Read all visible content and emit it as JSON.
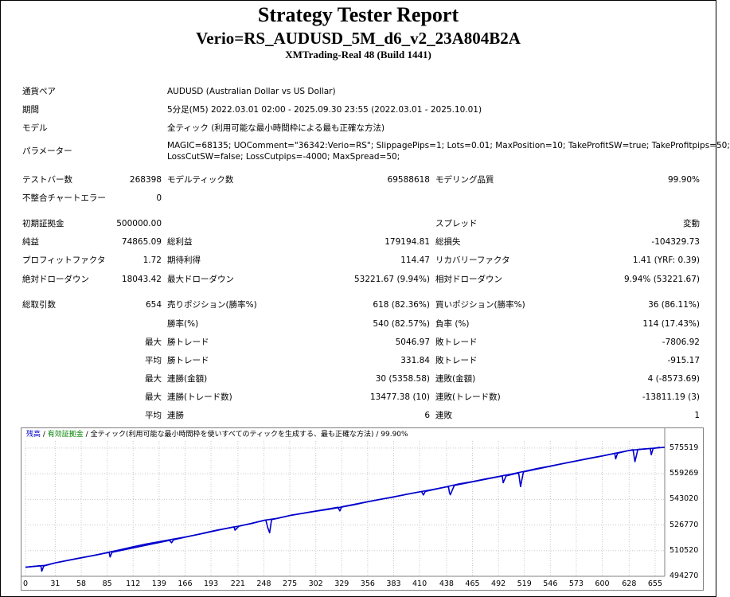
{
  "header": {
    "title": "Strategy Tester Report",
    "subtitle": "Verio=RS_AUDUSD_5M_d6_v2_23A804B2A",
    "server": "XMTrading-Real 48 (Build 1441)"
  },
  "info": {
    "symbol_label": "通貨ペア",
    "symbol_value": "AUDUSD (Australian Dollar vs US Dollar)",
    "period_label": "期間",
    "period_value": "5分足(M5) 2022.03.01 02:00 - 2025.09.30 23:55 (2022.03.01 - 2025.10.01)",
    "model_label": "モデル",
    "model_value": "全ティック (利用可能な最小時間枠による最も正確な方法)",
    "params_label": "パラメーター",
    "params_line1": "MAGIC=68135; UOComment=\"36342:Verio=RS\"; SlippagePips=1; Lots=0.01; MaxPosition=10; TakeProfitSW=true; TakeProfitpips=50;",
    "params_line2": "LossCutSW=false; LossCutpips=-4000; MaxSpread=50;"
  },
  "stats": {
    "bars_label": "テストバー数",
    "bars_value": "268398",
    "ticks_label": "モデルティック数",
    "ticks_value": "69588618",
    "quality_label": "モデリング品質",
    "quality_value": "99.90%",
    "mismatch_label": "不整合チャートエラー",
    "mismatch_value": "0",
    "deposit_label": "初期証拠金",
    "deposit_value": "500000.00",
    "spread_label": "スプレッド",
    "spread_value": "変動",
    "netprofit_label": "純益",
    "netprofit_value": "74865.09",
    "grossprofit_label": "総利益",
    "grossprofit_value": "179194.81",
    "grossloss_label": "総損失",
    "grossloss_value": "-104329.73",
    "pf_label": "プロフィットファクタ",
    "pf_value": "1.72",
    "payoff_label": "期待利得",
    "payoff_value": "114.47",
    "recovery_label": "リカバリーファクタ",
    "recovery_value": "1.41 (YRF: 0.39)",
    "absdd_label": "絶対ドローダウン",
    "absdd_value": "18043.42",
    "maxdd_label": "最大ドローダウン",
    "maxdd_value": "53221.67 (9.94%)",
    "reldd_label": "相対ドローダウン",
    "reldd_value": "9.94% (53221.67)",
    "trades_label": "総取引数",
    "trades_value": "654",
    "short_label": "売りポジション(勝率%)",
    "short_value": "618 (82.36%)",
    "long_label": "買いポジション(勝率%)",
    "long_value": "36 (86.11%)",
    "win_label": "勝率(%)",
    "win_value": "540 (82.57%)",
    "loss_label": "負率 (%)",
    "loss_value": "114 (17.43%)",
    "max1": "最大",
    "maxwin_label": "勝トレード",
    "maxwin_value": "5046.97",
    "maxloss_label": "敗トレード",
    "maxloss_value": "-7806.92",
    "avg1": "平均",
    "avgwin_label": "勝トレード",
    "avgwin_value": "331.84",
    "avgloss_label": "敗トレード",
    "avgloss_value": "-915.17",
    "max2": "最大",
    "consw_label": "連勝(金額)",
    "consw_value": "30 (5358.58)",
    "consl_label": "連敗(金額)",
    "consl_value": "4 (-8573.69)",
    "max3": "最大",
    "conswp_label": "連勝(トレード数)",
    "conswp_value": "13477.38 (10)",
    "conslp_label": "連敗(トレード数)",
    "conslp_value": "-13811.19 (3)",
    "avg2": "平均",
    "avgcw_label": "連勝",
    "avgcw_value": "6",
    "avgcl_label": "連敗",
    "avgcl_value": "1"
  },
  "chart_legend": {
    "balance": "残高",
    "sep1": " / ",
    "equity": "有効証拠金",
    "sep2": " / ",
    "rest": "全ティック(利用可能な最小時間枠を使いすべてのティックを生成する、最も正確な方法) / 99.90%"
  },
  "chart_data": {
    "type": "line",
    "x_ticks": [
      "0",
      "31",
      "58",
      "85",
      "112",
      "139",
      "166",
      "193",
      "221",
      "248",
      "275",
      "302",
      "329",
      "356",
      "383",
      "410",
      "438",
      "465",
      "492",
      "519",
      "546",
      "573",
      "600",
      "628",
      "655"
    ],
    "y_ticks": [
      "575519",
      "559269",
      "543020",
      "526770",
      "510520",
      "494270"
    ],
    "ylim": [
      494270,
      580000
    ],
    "xlim": [
      0,
      665
    ],
    "balance_color": "#0000cc",
    "equity_color": "#008000",
    "series": [
      {
        "name": "残高",
        "points": [
          [
            0,
            500000
          ],
          [
            20,
            501200
          ],
          [
            31,
            502800
          ],
          [
            45,
            504500
          ],
          [
            58,
            506000
          ],
          [
            72,
            507600
          ],
          [
            85,
            509300
          ],
          [
            98,
            511000
          ],
          [
            112,
            513000
          ],
          [
            125,
            514700
          ],
          [
            139,
            516200
          ],
          [
            152,
            517600
          ],
          [
            166,
            519200
          ],
          [
            180,
            520800
          ],
          [
            193,
            522500
          ],
          [
            207,
            524400
          ],
          [
            221,
            526000
          ],
          [
            235,
            527700
          ],
          [
            248,
            529700
          ],
          [
            262,
            531000
          ],
          [
            275,
            532800
          ],
          [
            288,
            534100
          ],
          [
            302,
            535500
          ],
          [
            315,
            536700
          ],
          [
            329,
            538200
          ],
          [
            342,
            539600
          ],
          [
            356,
            541500
          ],
          [
            369,
            543000
          ],
          [
            383,
            544500
          ],
          [
            396,
            546200
          ],
          [
            410,
            547800
          ],
          [
            424,
            549300
          ],
          [
            438,
            551000
          ],
          [
            451,
            552800
          ],
          [
            465,
            554300
          ],
          [
            478,
            555900
          ],
          [
            492,
            557500
          ],
          [
            505,
            559000
          ],
          [
            519,
            560800
          ],
          [
            532,
            562500
          ],
          [
            546,
            564100
          ],
          [
            559,
            565700
          ],
          [
            573,
            567400
          ],
          [
            586,
            569000
          ],
          [
            600,
            570500
          ],
          [
            614,
            572300
          ],
          [
            628,
            574000
          ],
          [
            641,
            574800
          ],
          [
            655,
            575519
          ],
          [
            665,
            576000
          ]
        ]
      },
      {
        "name": "有効証拠金",
        "points": [
          [
            0,
            500000
          ],
          [
            16,
            501000
          ],
          [
            17,
            497500
          ],
          [
            19,
            500800
          ],
          [
            31,
            502800
          ],
          [
            75,
            508000
          ],
          [
            87,
            509400
          ],
          [
            88,
            506500
          ],
          [
            90,
            509500
          ],
          [
            150,
            517000
          ],
          [
            152,
            515500
          ],
          [
            154,
            517400
          ],
          [
            200,
            523600
          ],
          [
            207,
            524400
          ],
          [
            217,
            525600
          ],
          [
            218,
            523500
          ],
          [
            222,
            526000
          ],
          [
            250,
            529900
          ],
          [
            252,
            525200
          ],
          [
            254,
            521800
          ],
          [
            256,
            530200
          ],
          [
            275,
            532800
          ],
          [
            325,
            538000
          ],
          [
            327,
            535700
          ],
          [
            329,
            538300
          ],
          [
            356,
            541500
          ],
          [
            412,
            548000
          ],
          [
            414,
            545800
          ],
          [
            416,
            548100
          ],
          [
            440,
            551200
          ],
          [
            441,
            547500
          ],
          [
            442,
            545900
          ],
          [
            446,
            551800
          ],
          [
            496,
            557800
          ],
          [
            497,
            553600
          ],
          [
            500,
            557900
          ],
          [
            513,
            559800
          ],
          [
            515,
            551100
          ],
          [
            518,
            560400
          ],
          [
            560,
            565800
          ],
          [
            600,
            570500
          ],
          [
            613,
            572200
          ],
          [
            614,
            568700
          ],
          [
            616,
            572300
          ],
          [
            628,
            574000
          ],
          [
            632,
            574500
          ],
          [
            634,
            566900
          ],
          [
            637,
            574600
          ],
          [
            641,
            574800
          ],
          [
            650,
            575200
          ],
          [
            651,
            571300
          ],
          [
            653,
            575300
          ],
          [
            660,
            576000
          ]
        ]
      }
    ]
  }
}
